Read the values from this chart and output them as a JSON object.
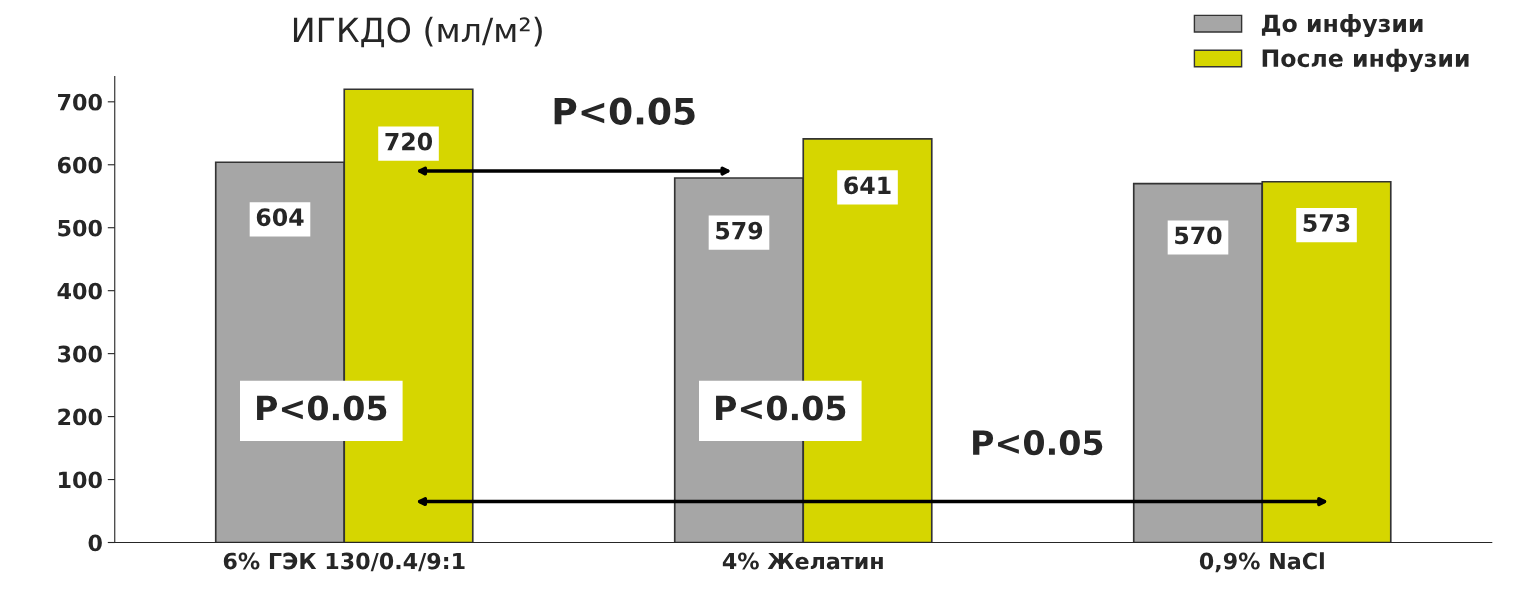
{
  "chart_data": {
    "type": "bar",
    "title": "ИГКДО (мл/м²)",
    "categories": [
      "6% ГЭК 130/0.4/9:1",
      "4% Желатин",
      "0,9% NaCl"
    ],
    "series": [
      {
        "name": "До инфузии",
        "color": "#a6a6a6",
        "values": [
          604,
          579,
          570
        ]
      },
      {
        "name": "После инфузии",
        "color": "#d6d600",
        "values": [
          720,
          641,
          573
        ]
      }
    ],
    "ylim": [
      0,
      740
    ],
    "yticks": [
      0,
      100,
      200,
      300,
      400,
      500,
      600,
      700
    ],
    "data_labels": true,
    "grid": false,
    "legend": "top right",
    "annotations": [
      "P<0.05",
      "P<0.05",
      "P<0.05",
      "P<0.05"
    ]
  }
}
